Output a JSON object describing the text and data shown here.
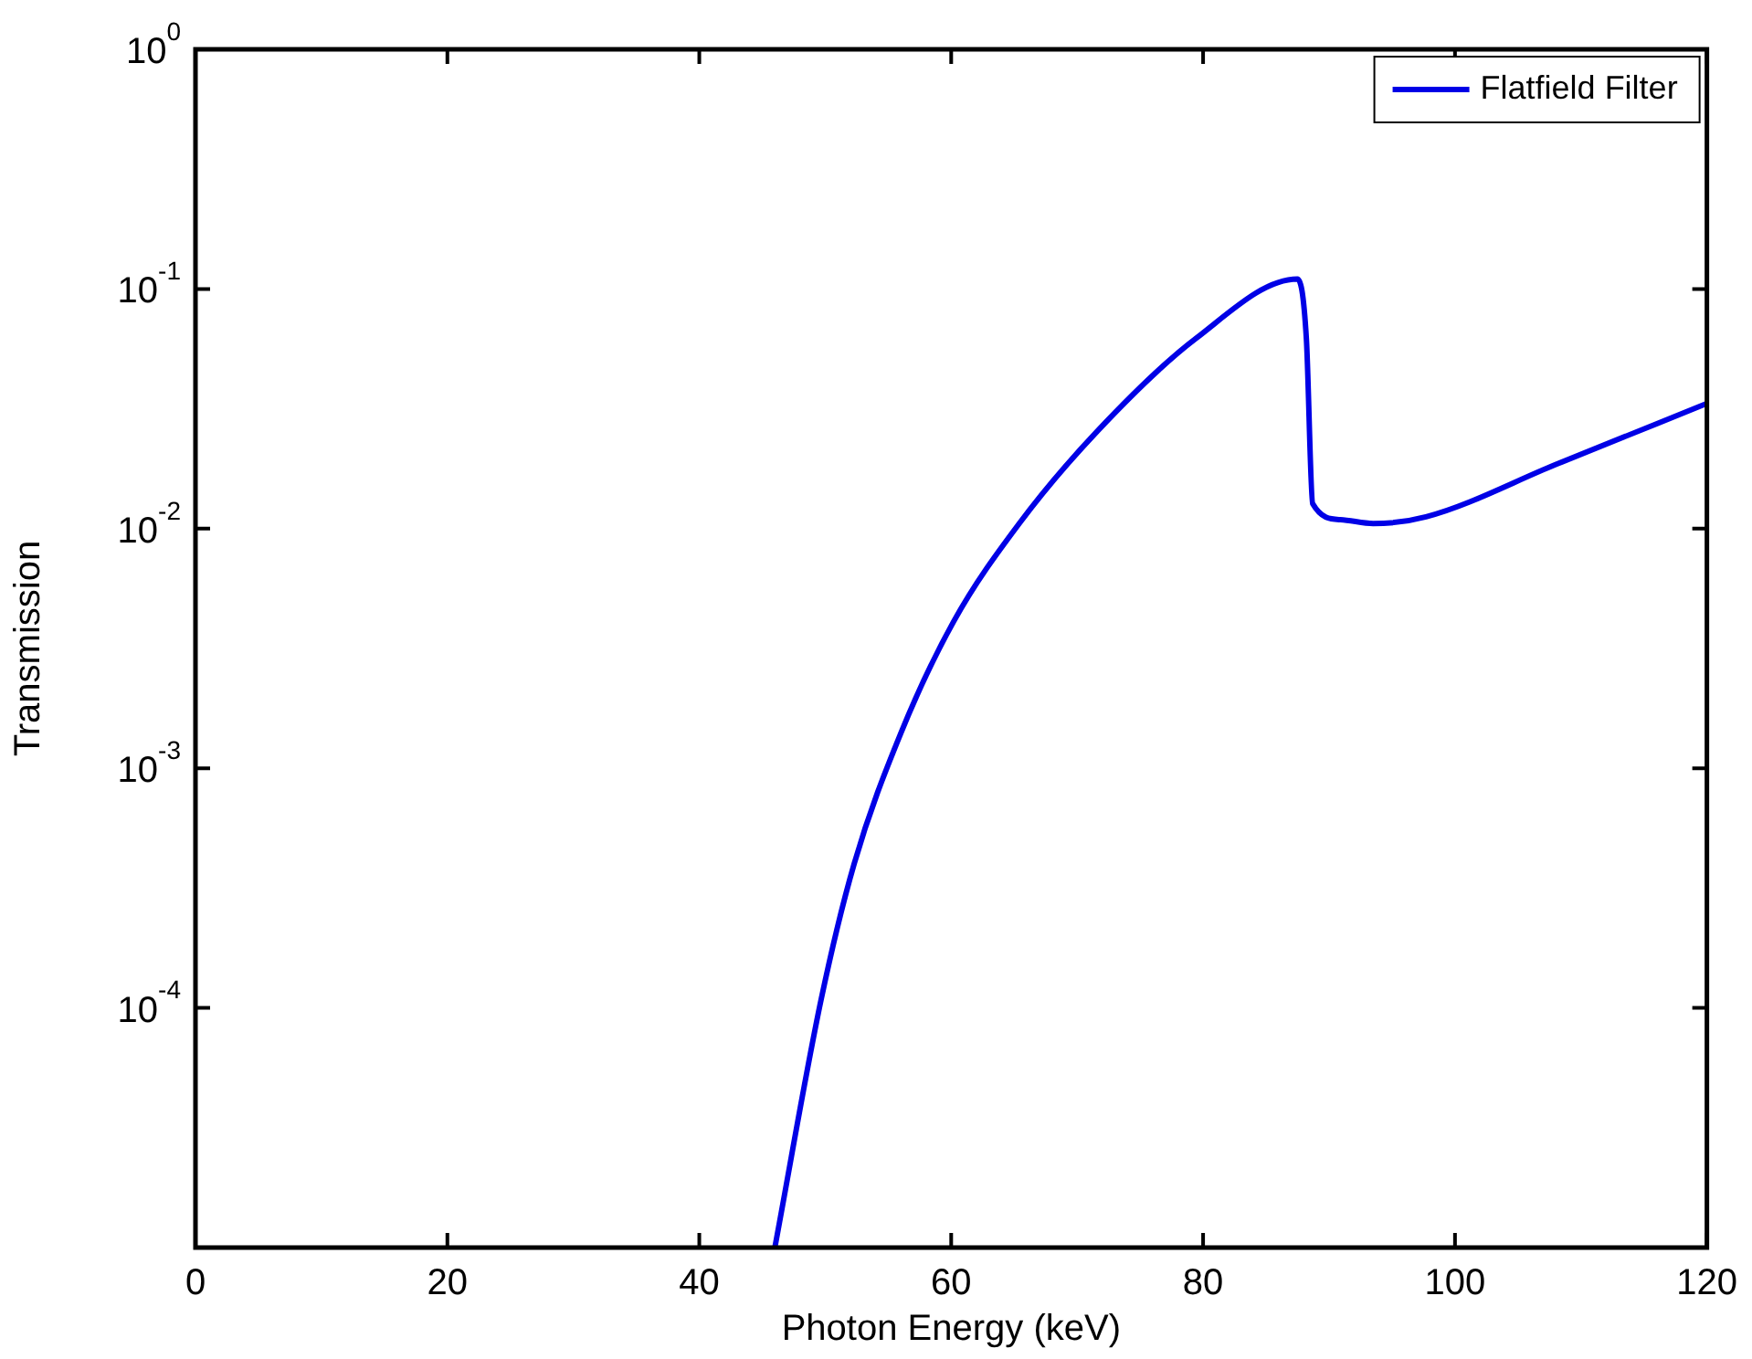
{
  "chart_data": {
    "type": "line",
    "xlabel": "Photon Energy (keV)",
    "ylabel": "Transmission",
    "log": "y",
    "grid": false,
    "legend": "top right",
    "marker": "none",
    "line_style": "solid",
    "xlim": [
      0,
      120
    ],
    "xticks": [
      0,
      20,
      40,
      60,
      80,
      100,
      120
    ],
    "ylim": [
      1e-05,
      1
    ],
    "yticks": [
      {
        "value": 0.0001,
        "label": "10$^{-4}$"
      },
      {
        "value": 0.001,
        "label": "10$^{-3}$"
      },
      {
        "value": 0.01,
        "label": "10$^{-2}$"
      },
      {
        "value": 0.1,
        "label": "10$^{-1}$"
      },
      {
        "value": 1,
        "label": "10$^{0}$"
      }
    ],
    "series": [
      {
        "name": "Flatfield Filter",
        "color": "#0000e6",
        "x": [
          46,
          49.7,
          52.3,
          56,
          60.2,
          65.4,
          71.6,
          79.4,
          87.5,
          88.2,
          88.7,
          90.9,
          93.5,
          97.7,
          108.1,
          120
        ],
        "values": [
          1e-05,
          0.00011,
          0.0004,
          0.0014,
          0.0041,
          0.0105,
          0.0255,
          0.062,
          0.11,
          0.062,
          0.0127,
          0.0109,
          0.0105,
          0.0112,
          0.0186,
          0.0333
        ]
      }
    ]
  }
}
